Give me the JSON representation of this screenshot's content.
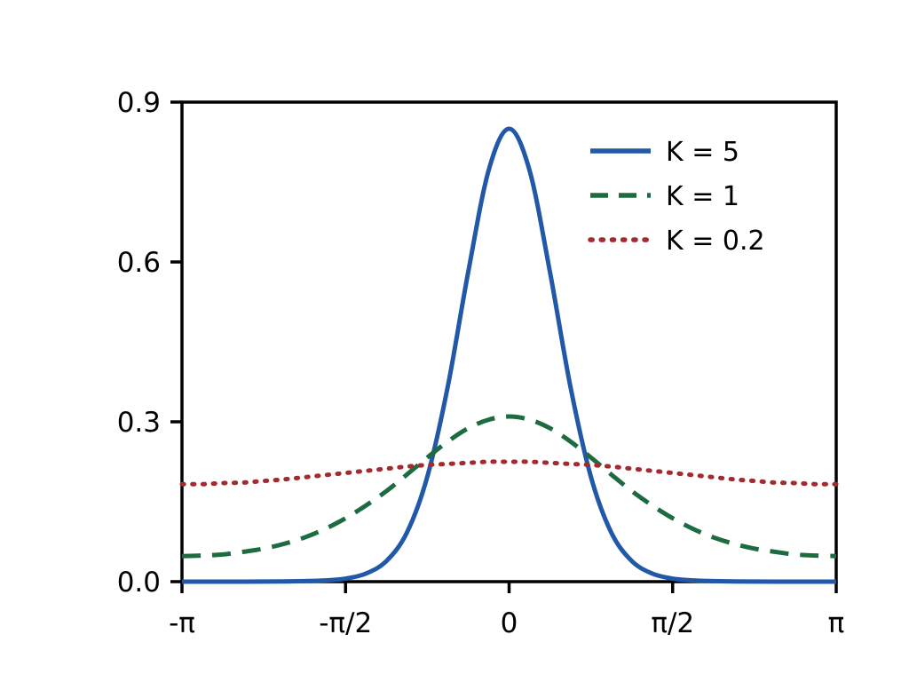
{
  "figure": {
    "background": "#ffffff",
    "axis_color": "#000000",
    "text_color": "#000000"
  },
  "chart_data": {
    "type": "line",
    "title": "",
    "xlabel": "",
    "ylabel": "",
    "xlim_over_pi": [
      -1,
      1
    ],
    "ylim": [
      0,
      0.9
    ],
    "grid": false,
    "legend": {
      "position": "upper right",
      "frame": false
    },
    "x_ticks": [
      {
        "value": -1,
        "label": "-π"
      },
      {
        "value": -0.5,
        "label": "-π/2"
      },
      {
        "value": 0,
        "label": "0"
      },
      {
        "value": 0.5,
        "label": "π/2"
      },
      {
        "value": 1,
        "label": "π"
      }
    ],
    "y_ticks": [
      {
        "value": 0.0,
        "label": "0.0"
      },
      {
        "value": 0.3,
        "label": "0.3"
      },
      {
        "value": 0.6,
        "label": "0.6"
      },
      {
        "value": 0.9,
        "label": "0.9"
      }
    ],
    "x_over_pi": [
      -1,
      -0.9375,
      -0.875,
      -0.8125,
      -0.75,
      -0.6875,
      -0.625,
      -0.5625,
      -0.5,
      -0.4375,
      -0.375,
      -0.3125,
      -0.25,
      -0.1875,
      -0.125,
      -0.0625,
      0,
      0.0625,
      0.125,
      0.1875,
      0.25,
      0.3125,
      0.375,
      0.4375,
      0.5,
      0.5625,
      0.625,
      0.6875,
      0.75,
      0.8125,
      0.875,
      0.9375,
      1
    ],
    "series": [
      {
        "name": "K = 5",
        "color": "#2158a8",
        "style": "solid",
        "values": [
          0,
          0,
          0.0001,
          0.0001,
          0.0002,
          0.0004,
          0.001,
          0.0022,
          0.0057,
          0.0152,
          0.0388,
          0.092,
          0.197,
          0.366,
          0.581,
          0.772,
          0.85,
          0.772,
          0.581,
          0.366,
          0.197,
          0.092,
          0.0388,
          0.0152,
          0.0057,
          0.0022,
          0.001,
          0.0004,
          0.0002,
          0.0001,
          0.0001,
          0,
          0
        ]
      },
      {
        "name": "K = 1",
        "color": "#1d6b40",
        "style": "dashed",
        "values": [
          0.048,
          0.049,
          0.051,
          0.056,
          0.062,
          0.071,
          0.083,
          0.099,
          0.119,
          0.143,
          0.17,
          0.201,
          0.233,
          0.263,
          0.288,
          0.304,
          0.31,
          0.304,
          0.288,
          0.263,
          0.233,
          0.201,
          0.17,
          0.143,
          0.119,
          0.099,
          0.083,
          0.071,
          0.062,
          0.056,
          0.051,
          0.049,
          0.048
        ]
      },
      {
        "name": "K = 0.2",
        "color": "#a32a2e",
        "style": "dotted",
        "values": [
          0.183,
          0.183,
          0.185,
          0.186,
          0.189,
          0.192,
          0.196,
          0.2,
          0.204,
          0.208,
          0.212,
          0.216,
          0.219,
          0.221,
          0.223,
          0.225,
          0.225,
          0.225,
          0.223,
          0.221,
          0.219,
          0.216,
          0.212,
          0.208,
          0.204,
          0.2,
          0.196,
          0.192,
          0.189,
          0.186,
          0.185,
          0.183,
          0.183
        ]
      }
    ]
  }
}
